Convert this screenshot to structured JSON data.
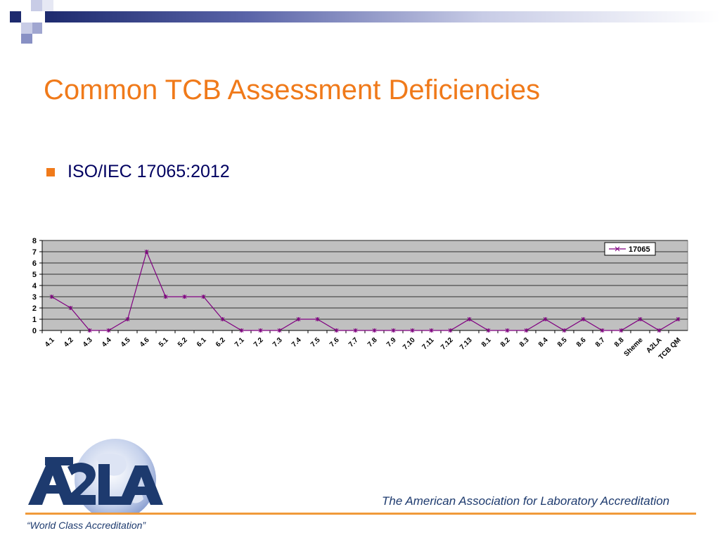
{
  "slide": {
    "title": "Common TCB Assessment Deficiencies",
    "bullet": "ISO/IEC 17065:2012",
    "tagline": "The American Association for Laboratory Accreditation",
    "slogan": "“World Class Accreditation”",
    "accent_color": "#f07a1a",
    "navy_color": "#1d2a6e"
  },
  "chart_data": {
    "type": "line",
    "categories": [
      "4.1",
      "4.2",
      "4.3",
      "4.4",
      "4.5",
      "4.6",
      "5.1",
      "5.2",
      "6.1",
      "6.2",
      "7.1",
      "7.2",
      "7.3",
      "7.4",
      "7.5",
      "7.6",
      "7.7",
      "7.8",
      "7.9",
      "7.10",
      "7.11",
      "7.12",
      "7.13",
      "8.1",
      "8.2",
      "8.3",
      "8.4",
      "8.5",
      "8.6",
      "8.7",
      "8.8",
      "Sheme",
      "A2LA",
      "TCB QM"
    ],
    "series": [
      {
        "name": "17065",
        "color": "#800080",
        "values": [
          3,
          2,
          0,
          0,
          1,
          7,
          3,
          3,
          3,
          1,
          0,
          0,
          0,
          1,
          1,
          0,
          0,
          0,
          0,
          0,
          0,
          0,
          1,
          0,
          0,
          0,
          1,
          0,
          1,
          0,
          0,
          1,
          0,
          1
        ]
      }
    ],
    "ylim": [
      0,
      8
    ],
    "yticks": [
      "0",
      "1",
      "2",
      "3",
      "4",
      "5",
      "6",
      "7",
      "8"
    ],
    "grid": true,
    "legend_position": "top-right",
    "plot_background": "#c0c0c0"
  }
}
